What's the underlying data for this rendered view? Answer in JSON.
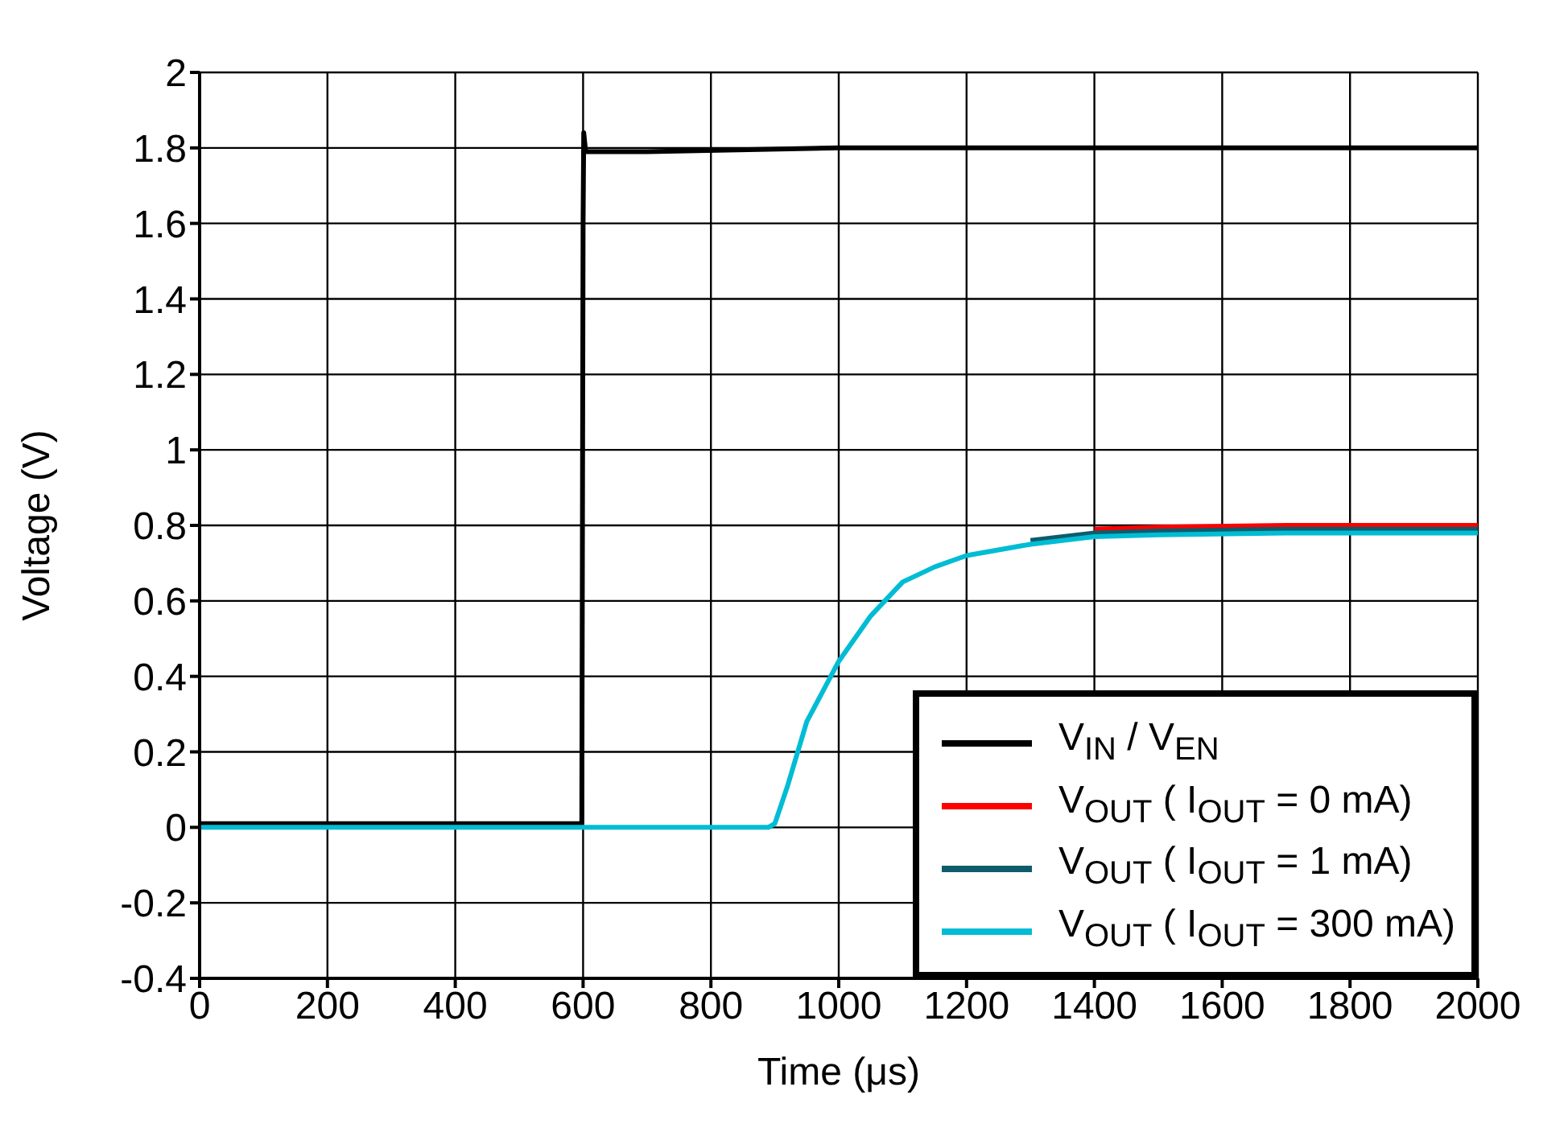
{
  "chart_data": {
    "type": "line",
    "xlabel": "Time (μs)",
    "ylabel": "Voltage (V)",
    "xlim": [
      0,
      2000
    ],
    "xticks": [
      0,
      200,
      400,
      600,
      800,
      1000,
      1200,
      1400,
      1600,
      1800,
      2000
    ],
    "ylim": [
      -0.4,
      2
    ],
    "yticks": [
      -0.4,
      -0.2,
      0,
      0.2,
      0.4,
      0.6,
      0.8,
      1,
      1.2,
      1.4,
      1.6,
      1.8,
      2
    ],
    "grid": true,
    "legend": "bottom right",
    "marker": "none",
    "line_style": "solid",
    "series": [
      {
        "name": "V$_{IN}$ / V$_{EN}$",
        "color": "#000000",
        "x": [
          0,
          300,
          598,
          600,
          601,
          604,
          700,
          1000,
          1500,
          2000
        ],
        "values": [
          0.01,
          0.01,
          0.01,
          1.6,
          1.84,
          1.79,
          1.79,
          1.8,
          1.8,
          1.8
        ]
      },
      {
        "name": "V$_{OUT}$ ( I$_{OUT}$ = 0 mA)",
        "color": "#ff0000",
        "x": [
          1400,
          1500,
          1700,
          2000
        ],
        "values": [
          0.79,
          0.795,
          0.8,
          0.8
        ]
      },
      {
        "name": "V$_{OUT}$ ( I$_{OUT}$ = 1 mA)",
        "color": "#0e5b6b",
        "x": [
          1300,
          1400,
          1500,
          1700,
          2000
        ],
        "values": [
          0.76,
          0.78,
          0.785,
          0.79,
          0.79
        ]
      },
      {
        "name": "V$_{OUT}$ ( I$_{OUT}$ = 300 mA)",
        "color": "#00bcd4",
        "x": [
          0,
          600,
          890,
          900,
          920,
          950,
          1000,
          1050,
          1100,
          1150,
          1200,
          1300,
          1400,
          1500,
          1700,
          2000
        ],
        "values": [
          0,
          0,
          0,
          0.01,
          0.11,
          0.28,
          0.44,
          0.56,
          0.65,
          0.69,
          0.72,
          0.75,
          0.77,
          0.775,
          0.78,
          0.78
        ]
      }
    ]
  }
}
